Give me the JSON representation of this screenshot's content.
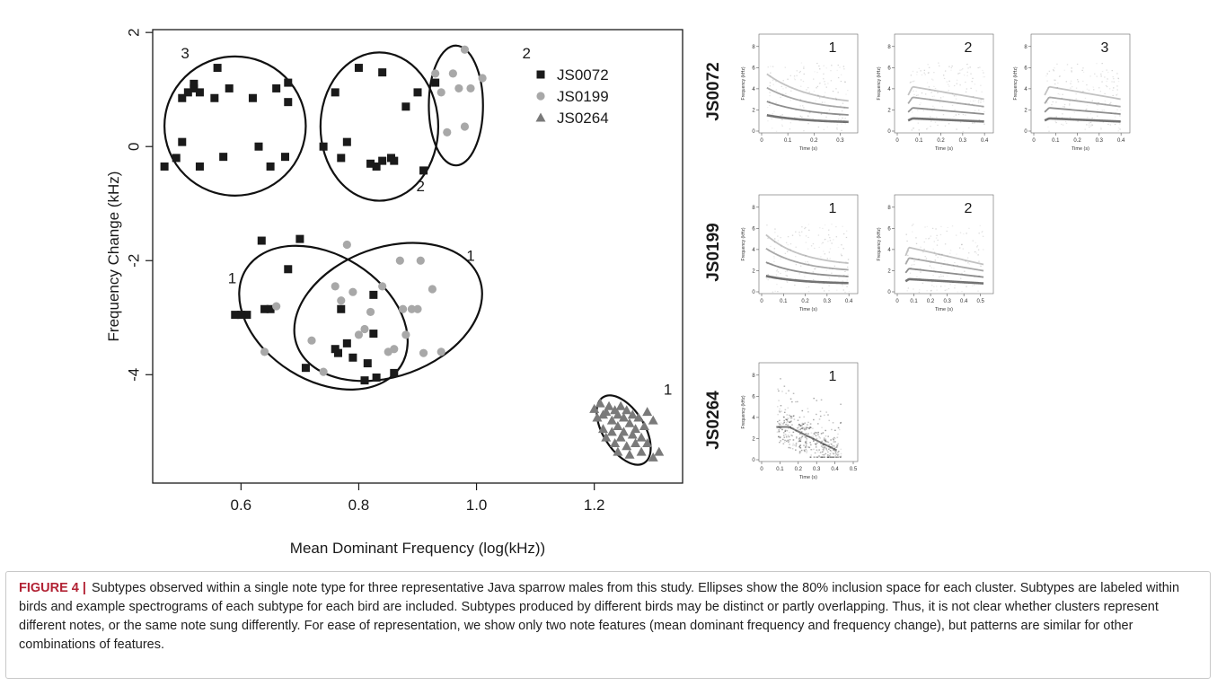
{
  "chart_data": [
    {
      "type": "scatter",
      "xlabel": "Mean Dominant Frequency (log(kHz))",
      "ylabel": "Frequency Change (kHz)",
      "xlim": [
        0.45,
        1.35
      ],
      "ylim": [
        -5.9,
        2.05
      ],
      "xticks": [
        0.6,
        0.8,
        1.0,
        1.2
      ],
      "yticks": [
        -4,
        -2,
        0,
        2
      ],
      "legend": {
        "placement": "top-right"
      },
      "series": [
        {
          "name": "JS0072",
          "marker": "square",
          "color": "#1a1a1a",
          "points": [
            [
              0.47,
              -0.35
            ],
            [
              0.49,
              -0.2
            ],
            [
              0.5,
              0.08
            ],
            [
              0.5,
              0.85
            ],
            [
              0.51,
              0.95
            ],
            [
              0.52,
              1.1
            ],
            [
              0.52,
              1.02
            ],
            [
              0.53,
              0.95
            ],
            [
              0.53,
              -0.35
            ],
            [
              0.555,
              0.85
            ],
            [
              0.56,
              1.38
            ],
            [
              0.57,
              -0.18
            ],
            [
              0.58,
              1.02
            ],
            [
              0.62,
              0.85
            ],
            [
              0.63,
              0.0
            ],
            [
              0.65,
              -0.35
            ],
            [
              0.66,
              1.02
            ],
            [
              0.675,
              -0.18
            ],
            [
              0.68,
              1.12
            ],
            [
              0.68,
              0.78
            ],
            [
              0.74,
              0.0
            ],
            [
              0.76,
              0.95
            ],
            [
              0.77,
              -0.2
            ],
            [
              0.78,
              0.08
            ],
            [
              0.8,
              1.38
            ],
            [
              0.82,
              -0.3
            ],
            [
              0.83,
              -0.35
            ],
            [
              0.84,
              1.3
            ],
            [
              0.84,
              -0.25
            ],
            [
              0.855,
              -0.2
            ],
            [
              0.86,
              -0.25
            ],
            [
              0.88,
              0.7
            ],
            [
              0.9,
              0.95
            ],
            [
              0.91,
              -0.42
            ],
            [
              0.93,
              1.12
            ],
            [
              0.59,
              -2.95
            ],
            [
              0.6,
              -2.95
            ],
            [
              0.61,
              -2.95
            ],
            [
              0.635,
              -1.65
            ],
            [
              0.64,
              -2.85
            ],
            [
              0.65,
              -2.85
            ],
            [
              0.68,
              -2.15
            ],
            [
              0.7,
              -1.62
            ],
            [
              0.71,
              -3.88
            ],
            [
              0.76,
              -3.55
            ],
            [
              0.765,
              -3.62
            ],
            [
              0.77,
              -2.85
            ],
            [
              0.78,
              -3.45
            ],
            [
              0.79,
              -3.7
            ],
            [
              0.81,
              -4.1
            ],
            [
              0.815,
              -3.8
            ],
            [
              0.825,
              -2.6
            ],
            [
              0.825,
              -3.28
            ],
            [
              0.83,
              -4.05
            ],
            [
              0.86,
              -3.97
            ]
          ]
        },
        {
          "name": "JS0199",
          "marker": "circle",
          "color": "#a8a8a8",
          "points": [
            [
              0.93,
              1.28
            ],
            [
              0.94,
              0.95
            ],
            [
              0.95,
              0.25
            ],
            [
              0.96,
              1.28
            ],
            [
              0.97,
              1.02
            ],
            [
              0.98,
              1.7
            ],
            [
              0.98,
              0.35
            ],
            [
              0.99,
              1.02
            ],
            [
              1.01,
              1.2
            ],
            [
              0.64,
              -3.6
            ],
            [
              0.66,
              -2.8
            ],
            [
              0.72,
              -3.4
            ],
            [
              0.74,
              -3.95
            ],
            [
              0.76,
              -2.45
            ],
            [
              0.77,
              -2.7
            ],
            [
              0.78,
              -1.72
            ],
            [
              0.79,
              -2.55
            ],
            [
              0.8,
              -3.3
            ],
            [
              0.81,
              -3.2
            ],
            [
              0.82,
              -2.9
            ],
            [
              0.84,
              -2.45
            ],
            [
              0.85,
              -3.6
            ],
            [
              0.86,
              -3.55
            ],
            [
              0.87,
              -2.0
            ],
            [
              0.875,
              -2.85
            ],
            [
              0.88,
              -3.3
            ],
            [
              0.89,
              -2.85
            ],
            [
              0.9,
              -2.85
            ],
            [
              0.905,
              -2.0
            ],
            [
              0.91,
              -3.62
            ],
            [
              0.925,
              -2.5
            ],
            [
              0.94,
              -3.6
            ]
          ]
        },
        {
          "name": "JS0264",
          "marker": "triangle",
          "color": "#7a7a7a",
          "points": [
            [
              1.2,
              -4.6
            ],
            [
              1.205,
              -4.75
            ],
            [
              1.21,
              -4.5
            ],
            [
              1.215,
              -4.95
            ],
            [
              1.22,
              -4.65
            ],
            [
              1.22,
              -5.1
            ],
            [
              1.225,
              -4.55
            ],
            [
              1.23,
              -4.8
            ],
            [
              1.23,
              -5.0
            ],
            [
              1.235,
              -4.62
            ],
            [
              1.235,
              -5.2
            ],
            [
              1.24,
              -4.7
            ],
            [
              1.24,
              -4.9
            ],
            [
              1.245,
              -4.55
            ],
            [
              1.245,
              -5.1
            ],
            [
              1.25,
              -4.75
            ],
            [
              1.25,
              -5.0
            ],
            [
              1.255,
              -4.62
            ],
            [
              1.255,
              -5.25
            ],
            [
              1.26,
              -4.85
            ],
            [
              1.26,
              -5.4
            ],
            [
              1.265,
              -5.05
            ],
            [
              1.265,
              -4.7
            ],
            [
              1.27,
              -4.95
            ],
            [
              1.27,
              -5.2
            ],
            [
              1.275,
              -4.75
            ],
            [
              1.28,
              -5.1
            ],
            [
              1.28,
              -5.35
            ],
            [
              1.285,
              -4.9
            ],
            [
              1.29,
              -5.2
            ],
            [
              1.29,
              -4.65
            ],
            [
              1.3,
              -5.45
            ],
            [
              1.31,
              -5.35
            ],
            [
              1.3,
              -4.8
            ],
            [
              1.215,
              -4.7
            ],
            [
              1.24,
              -5.35
            ]
          ]
        }
      ],
      "clusters": [
        {
          "bird": "JS0072",
          "label": "3",
          "center": [
            0.59,
            0.36
          ],
          "rx": 0.12,
          "ry": 1.22,
          "angle": 0
        },
        {
          "bird": "JS0072",
          "label": "2",
          "center": [
            0.835,
            0.35
          ],
          "rx": 0.1,
          "ry": 1.3,
          "angle": 0
        },
        {
          "bird": "JS0199",
          "label": "2",
          "center": [
            0.965,
            0.72
          ],
          "rx": 0.046,
          "ry": 1.05,
          "angle": 0
        },
        {
          "bird": "JS0072",
          "label": "1",
          "center": [
            0.74,
            -3.0
          ],
          "rx": 0.155,
          "ry": 1.1,
          "angle": 32
        },
        {
          "bird": "JS0199",
          "label": "1",
          "center": [
            0.85,
            -2.9
          ],
          "rx": 0.165,
          "ry": 1.13,
          "angle": -20
        },
        {
          "bird": "JS0264",
          "label": "1",
          "center": [
            1.25,
            -4.97
          ],
          "rx": 0.035,
          "ry": 0.68,
          "angle": -32
        }
      ],
      "cluster_labels": [
        {
          "text": "3",
          "x": 0.505,
          "y": 1.55
        },
        {
          "text": "2",
          "x": 0.905,
          "y": -0.78
        },
        {
          "text": "2",
          "x": 1.085,
          "y": 1.55
        },
        {
          "text": "1",
          "x": 0.585,
          "y": -2.4
        },
        {
          "text": "1",
          "x": 0.99,
          "y": -2.0
        },
        {
          "text": "1",
          "x": 1.325,
          "y": -4.35
        }
      ]
    },
    {
      "type": "heatmap",
      "kind": "spectrogram",
      "panels": [
        {
          "bird": "JS0072",
          "subtype": "1",
          "pattern": "descending",
          "tmax": 0.35,
          "xticks": [
            "0",
            "0.1",
            "0.2",
            "0.3"
          ],
          "yticks": [
            "0",
            "2",
            "4",
            "6",
            "8"
          ],
          "xlabel": "Time (s)",
          "ylabel": "Frequency (kHz)"
        },
        {
          "bird": "JS0072",
          "subtype": "2",
          "pattern": "harmonic",
          "tmax": 0.42,
          "xticks": [
            "0",
            "0.1",
            "0.2",
            "0.3",
            "0.4"
          ],
          "yticks": [
            "0",
            "2",
            "4",
            "6",
            "8"
          ],
          "xlabel": "Time (s)",
          "ylabel": "Frequency (kHz)"
        },
        {
          "bird": "JS0072",
          "subtype": "3",
          "pattern": "harmonic",
          "tmax": 0.42,
          "xticks": [
            "0",
            "0.1",
            "0.2",
            "0.3",
            "0.4"
          ],
          "yticks": [
            "0",
            "2",
            "4",
            "6",
            "8"
          ],
          "xlabel": "Time (s)",
          "ylabel": "Frequency (kHz)"
        },
        {
          "bird": "JS0199",
          "subtype": "1",
          "pattern": "descending",
          "tmax": 0.42,
          "xticks": [
            "0",
            "0.1",
            "0.2",
            "0.3",
            "0.4"
          ],
          "yticks": [
            "0",
            "2",
            "4",
            "6",
            "8"
          ],
          "xlabel": "Time (s)",
          "ylabel": "Frequency (kHz)"
        },
        {
          "bird": "JS0199",
          "subtype": "2",
          "pattern": "harmonic",
          "tmax": 0.55,
          "xticks": [
            "0",
            "0.1",
            "0.2",
            "0.3",
            "0.4",
            "0.5"
          ],
          "yticks": [
            "0",
            "2",
            "4",
            "6",
            "8"
          ],
          "xlabel": "Time (s)",
          "ylabel": "Frequency (kHz)"
        },
        {
          "bird": "JS0264",
          "subtype": "1",
          "pattern": "diffuse",
          "tmax": 0.5,
          "xticks": [
            "0",
            "0.1",
            "0.2",
            "0.3",
            "0.4",
            "0.5"
          ],
          "yticks": [
            "0",
            "2",
            "4",
            "6",
            "8"
          ],
          "xlabel": "Time (s)",
          "ylabel": "Frequency (kHz)"
        }
      ],
      "row_labels": [
        "JS0072",
        "JS0199",
        "JS0264"
      ]
    }
  ],
  "caption": {
    "label": "FIGURE 4 |",
    "text": "Subtypes observed within a single note type for three representative Java sparrow males from this study. Ellipses show the 80% inclusion space for each cluster. Subtypes are labeled within birds and example spectrograms of each subtype for each bird are included. Subtypes produced by different birds may be distinct or partly overlapping. Thus, it is not clear whether clusters represent different notes, or the same note sung differently. For ease of representation, we show only two note features (mean dominant frequency and frequency change), but patterns are similar for other combinations of features."
  }
}
